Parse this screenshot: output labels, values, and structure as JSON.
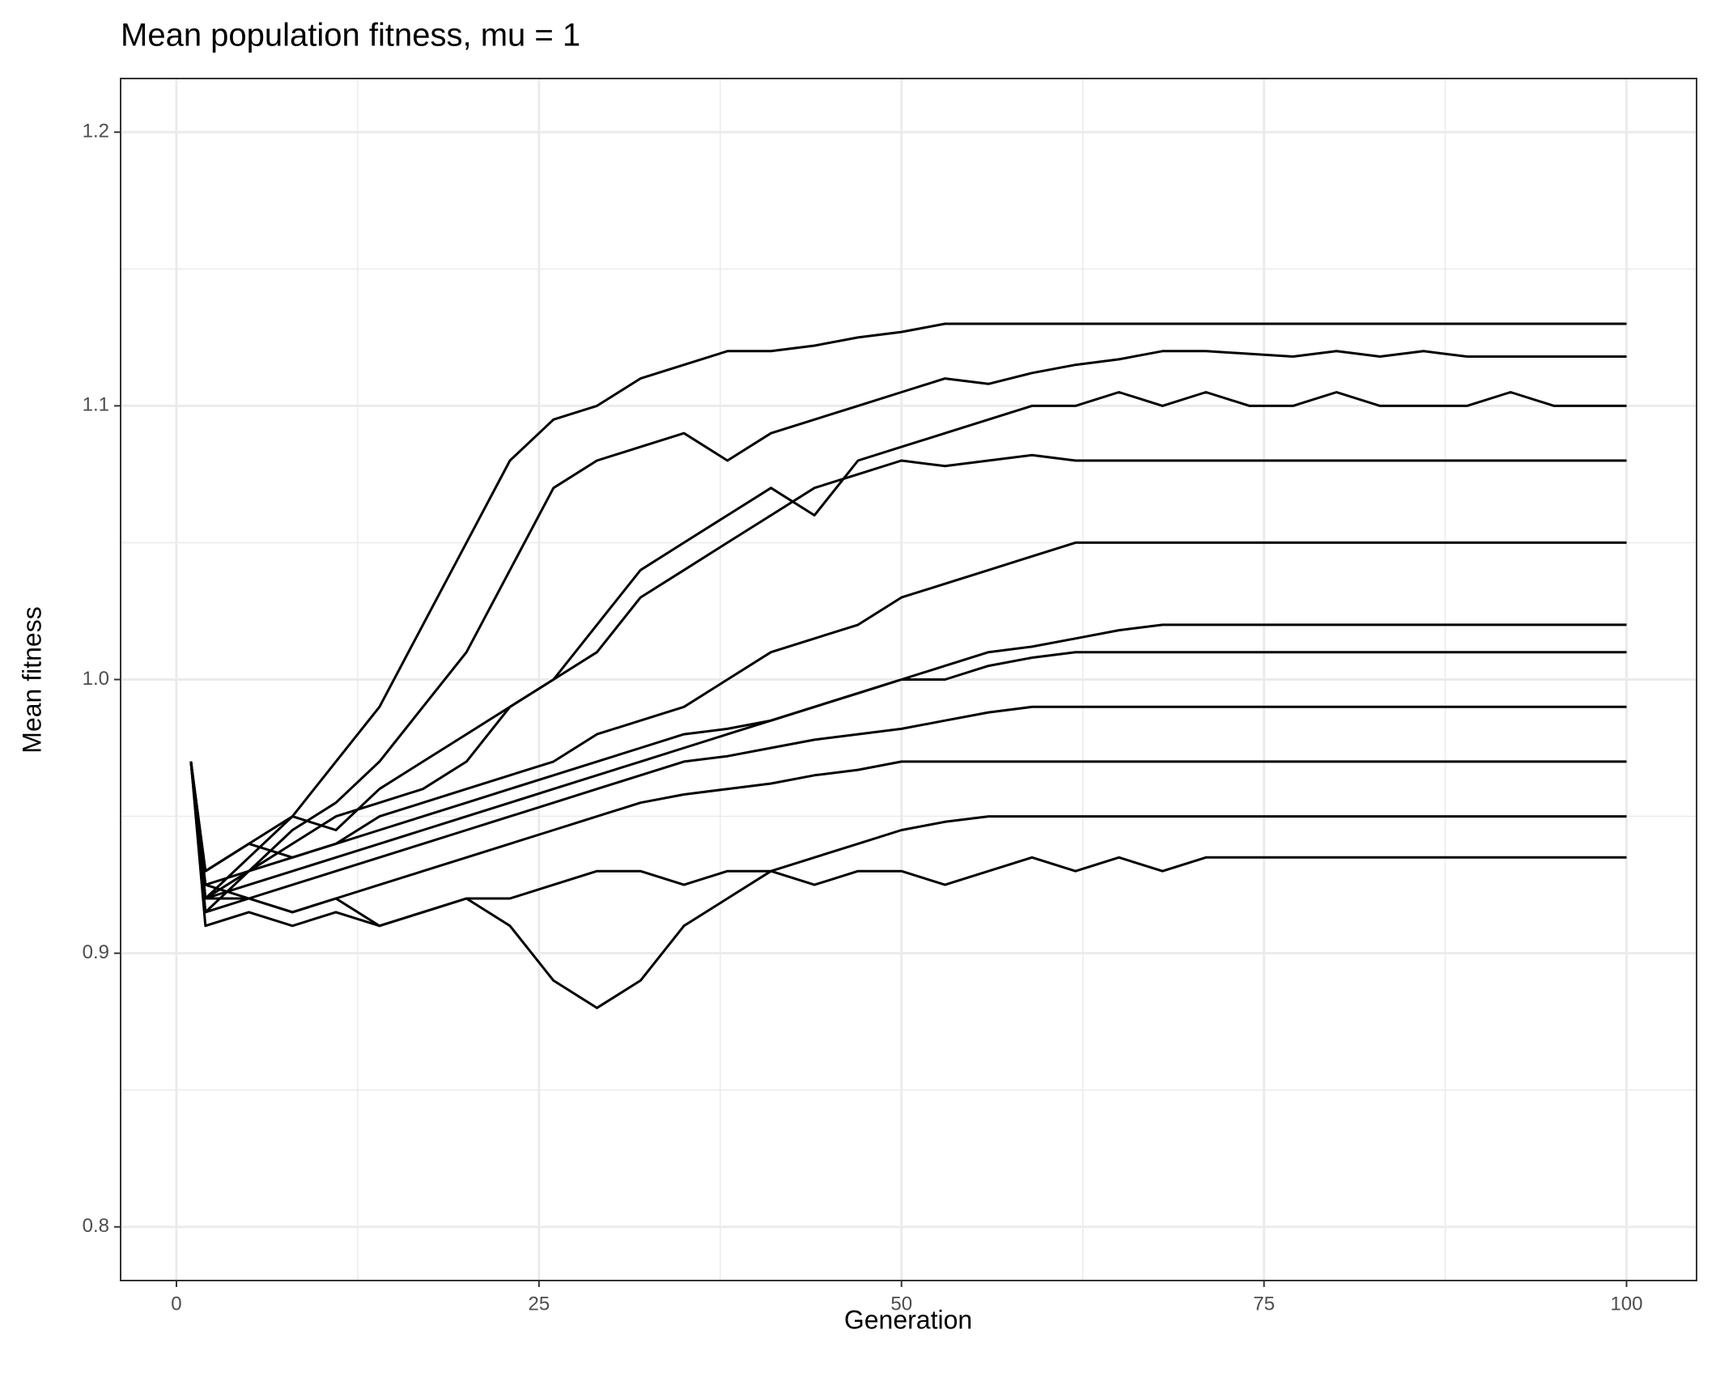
{
  "chart_data": {
    "type": "line",
    "title": "Mean population fitness, mu = 1",
    "x_label": "Generation",
    "y_label": "Mean fitness",
    "x": [
      1,
      2,
      5,
      8,
      11,
      14,
      17,
      20,
      23,
      26,
      29,
      32,
      35,
      38,
      41,
      44,
      47,
      50,
      53,
      56,
      59,
      62,
      65,
      68,
      71,
      74,
      77,
      80,
      83,
      86,
      89,
      92,
      95,
      98,
      100
    ],
    "color": "#000000",
    "series": [
      {
        "values": [
          0.97,
          0.92,
          0.935,
          0.95,
          0.97,
          0.99,
          1.02,
          1.05,
          1.08,
          1.095,
          1.1,
          1.11,
          1.115,
          1.12,
          1.12,
          1.122,
          1.125,
          1.127,
          1.13,
          1.13,
          1.13,
          1.13,
          1.13,
          1.13,
          1.13,
          1.13,
          1.13,
          1.13,
          1.13,
          1.13,
          1.13,
          1.13,
          1.13,
          1.13,
          1.13
        ]
      },
      {
        "values": [
          0.97,
          0.915,
          0.93,
          0.945,
          0.955,
          0.97,
          0.99,
          1.01,
          1.04,
          1.07,
          1.08,
          1.085,
          1.09,
          1.08,
          1.09,
          1.095,
          1.1,
          1.105,
          1.11,
          1.108,
          1.112,
          1.115,
          1.117,
          1.12,
          1.12,
          1.119,
          1.118,
          1.12,
          1.118,
          1.12,
          1.118,
          1.118,
          1.118,
          1.118,
          1.118
        ]
      },
      {
        "values": [
          0.97,
          0.93,
          0.94,
          0.95,
          0.945,
          0.96,
          0.97,
          0.98,
          0.99,
          1.0,
          1.02,
          1.04,
          1.05,
          1.06,
          1.07,
          1.06,
          1.08,
          1.085,
          1.09,
          1.095,
          1.1,
          1.1,
          1.105,
          1.1,
          1.105,
          1.1,
          1.1,
          1.105,
          1.1,
          1.1,
          1.1,
          1.105,
          1.1,
          1.1,
          1.1
        ]
      },
      {
        "values": [
          0.97,
          0.92,
          0.93,
          0.94,
          0.95,
          0.955,
          0.96,
          0.97,
          0.99,
          1.0,
          1.01,
          1.03,
          1.04,
          1.05,
          1.06,
          1.07,
          1.075,
          1.08,
          1.078,
          1.08,
          1.082,
          1.08,
          1.08,
          1.08,
          1.08,
          1.08,
          1.08,
          1.08,
          1.08,
          1.08,
          1.08,
          1.08,
          1.08,
          1.08,
          1.08
        ]
      },
      {
        "values": [
          0.97,
          0.925,
          0.93,
          0.935,
          0.94,
          0.95,
          0.955,
          0.96,
          0.965,
          0.97,
          0.98,
          0.985,
          0.99,
          1.0,
          1.01,
          1.015,
          1.02,
          1.03,
          1.035,
          1.04,
          1.045,
          1.05,
          1.05,
          1.05,
          1.05,
          1.05,
          1.05,
          1.05,
          1.05,
          1.05,
          1.05,
          1.05,
          1.05,
          1.05,
          1.05
        ]
      },
      {
        "values": [
          0.97,
          0.92,
          0.925,
          0.93,
          0.935,
          0.94,
          0.945,
          0.95,
          0.955,
          0.96,
          0.965,
          0.97,
          0.975,
          0.98,
          0.985,
          0.99,
          0.995,
          1.0,
          1.005,
          1.01,
          1.012,
          1.015,
          1.018,
          1.02,
          1.02,
          1.02,
          1.02,
          1.02,
          1.02,
          1.02,
          1.02,
          1.02,
          1.02,
          1.02,
          1.02
        ]
      },
      {
        "values": [
          0.97,
          0.93,
          0.94,
          0.935,
          0.94,
          0.945,
          0.95,
          0.955,
          0.96,
          0.965,
          0.97,
          0.975,
          0.98,
          0.982,
          0.985,
          0.99,
          0.995,
          1.0,
          1.0,
          1.005,
          1.008,
          1.01,
          1.01,
          1.01,
          1.01,
          1.01,
          1.01,
          1.01,
          1.01,
          1.01,
          1.01,
          1.01,
          1.01,
          1.01,
          1.01
        ]
      },
      {
        "values": [
          0.97,
          0.915,
          0.92,
          0.925,
          0.93,
          0.935,
          0.94,
          0.945,
          0.95,
          0.955,
          0.96,
          0.965,
          0.97,
          0.972,
          0.975,
          0.978,
          0.98,
          0.982,
          0.985,
          0.988,
          0.99,
          0.99,
          0.99,
          0.99,
          0.99,
          0.99,
          0.99,
          0.99,
          0.99,
          0.99,
          0.99,
          0.99,
          0.99,
          0.99,
          0.99
        ]
      },
      {
        "values": [
          0.97,
          0.92,
          0.92,
          0.915,
          0.92,
          0.925,
          0.93,
          0.935,
          0.94,
          0.945,
          0.95,
          0.955,
          0.958,
          0.96,
          0.962,
          0.965,
          0.967,
          0.97,
          0.97,
          0.97,
          0.97,
          0.97,
          0.97,
          0.97,
          0.97,
          0.97,
          0.97,
          0.97,
          0.97,
          0.97,
          0.97,
          0.97,
          0.97,
          0.97,
          0.97
        ]
      },
      {
        "values": [
          0.97,
          0.91,
          0.915,
          0.91,
          0.915,
          0.91,
          0.915,
          0.92,
          0.91,
          0.89,
          0.88,
          0.89,
          0.91,
          0.92,
          0.93,
          0.935,
          0.94,
          0.945,
          0.948,
          0.95,
          0.95,
          0.95,
          0.95,
          0.95,
          0.95,
          0.95,
          0.95,
          0.95,
          0.95,
          0.95,
          0.95,
          0.95,
          0.95,
          0.95,
          0.95
        ]
      },
      {
        "values": [
          0.97,
          0.925,
          0.92,
          0.915,
          0.92,
          0.91,
          0.915,
          0.92,
          0.92,
          0.925,
          0.93,
          0.93,
          0.925,
          0.93,
          0.93,
          0.925,
          0.93,
          0.93,
          0.925,
          0.93,
          0.935,
          0.93,
          0.935,
          0.93,
          0.935,
          0.935,
          0.935,
          0.935,
          0.935,
          0.935,
          0.935,
          0.935,
          0.935,
          0.935,
          0.935
        ]
      }
    ],
    "xlim": [
      -3.85,
      104.83
    ],
    "ylim": [
      0.7804,
      1.2196
    ],
    "xticks": [
      0,
      25,
      50,
      75,
      100
    ],
    "yticks": [
      0.8,
      0.9,
      {
        "value": 1,
        "label": "1.0"
      },
      1.1,
      1.2
    ],
    "minor_xticks": [
      12.5,
      37.5,
      62.5,
      87.5
    ],
    "minor_yticks": [
      0.85,
      0.95,
      1.05,
      1.15
    ],
    "grid": true
  }
}
